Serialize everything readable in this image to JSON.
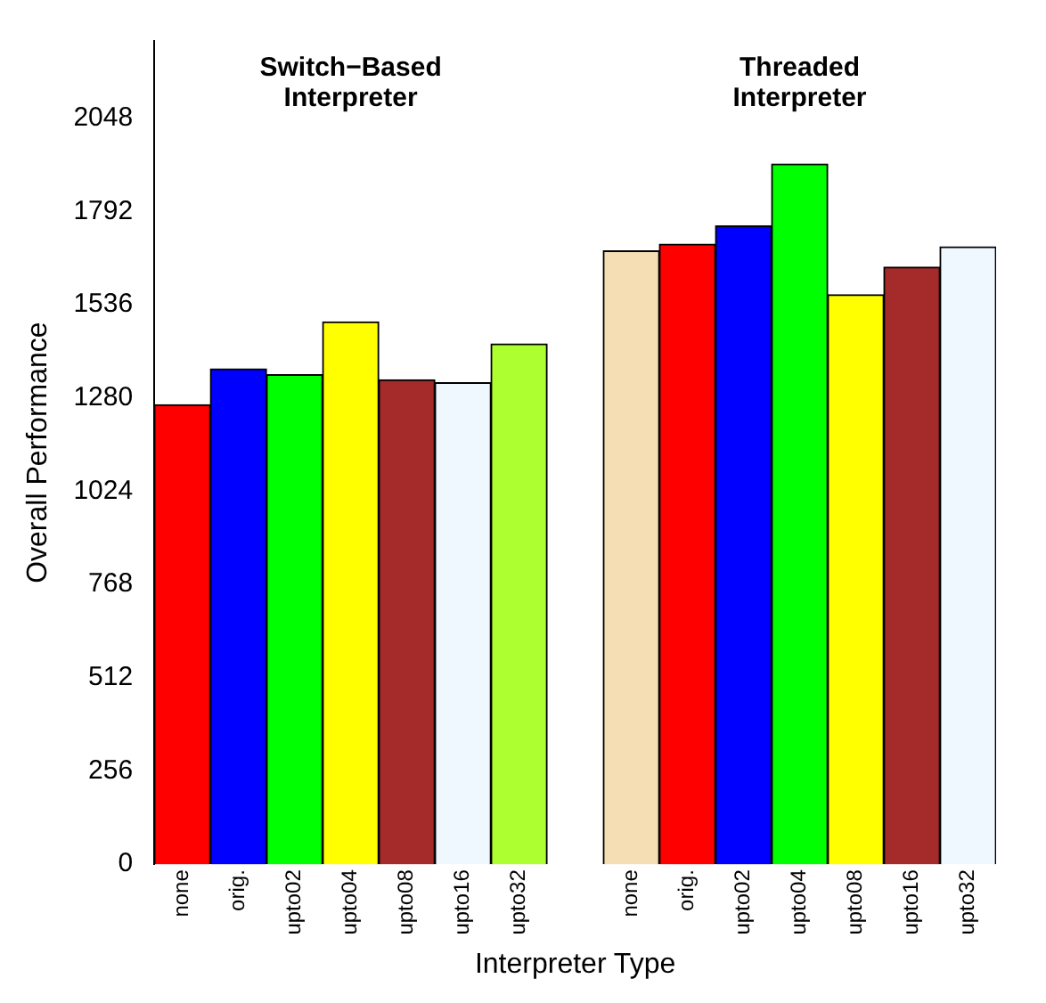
{
  "chart_data": {
    "type": "bar",
    "xlabel": "Interpreter Type",
    "ylabel": "Overall Performance",
    "categories": [
      "none",
      "orig.",
      "upto02",
      "upto04",
      "upto08",
      "upto16",
      "upto32",
      null,
      "none",
      "orig.",
      "upto02",
      "upto04",
      "upto08",
      "upto16",
      "upto32"
    ],
    "values": [
      1261,
      1360,
      1344,
      1489,
      1330,
      1322,
      1428,
      null,
      1684,
      1702,
      1752,
      1922,
      1563,
      1639,
      1695
    ],
    "colors": [
      "#ff0000",
      "#0000ff",
      "#00ff00",
      "#ffff00",
      "#a52a2a",
      "#f0f8ff",
      "#adff2f",
      "#ffffff",
      "#f5deb3",
      "#ff0000",
      "#0000ff",
      "#00ff00",
      "#ffff00",
      "#a52a2a",
      "#f0f8ff"
    ],
    "annotations": [
      "Switch−Based\nInterpreter",
      "Threaded\nInterpreter"
    ],
    "ylim": [
      0,
      2260
    ],
    "yticks": [
      0,
      256,
      512,
      768,
      1024,
      1280,
      1536,
      1792,
      2048
    ],
    "grid": false,
    "legend": false
  }
}
